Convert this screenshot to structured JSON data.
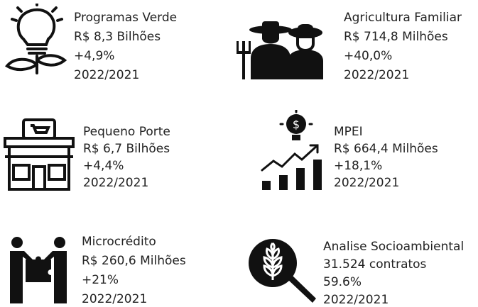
{
  "items": [
    {
      "name": "Programas Verde",
      "value": "R$ 8,3 Bilhões",
      "change": "+4,9%",
      "period": "2022/2021"
    },
    {
      "name": "Agricultura Familiar",
      "value": "R$ 714,8 Milhões",
      "change": "+40,0%",
      "period": "2022/2021"
    },
    {
      "name": "Pequeno Porte",
      "value": "R$ 6,7 Bilhões",
      "change": "+4,4%",
      "period": "2022/2021"
    },
    {
      "name": "MPEI",
      "value": "R$ 664,4 Milhões",
      "change": "+18,1%",
      "period": "2022/2021"
    },
    {
      "name": "Microcrédito",
      "value": "R$ 260,6 Milhões",
      "change": "+21%",
      "period": "2022/2021"
    },
    {
      "name": "Analise Socioambiental",
      "value": "31.524 contratos",
      "change": "59.6%",
      "period": "2022/2021"
    }
  ]
}
